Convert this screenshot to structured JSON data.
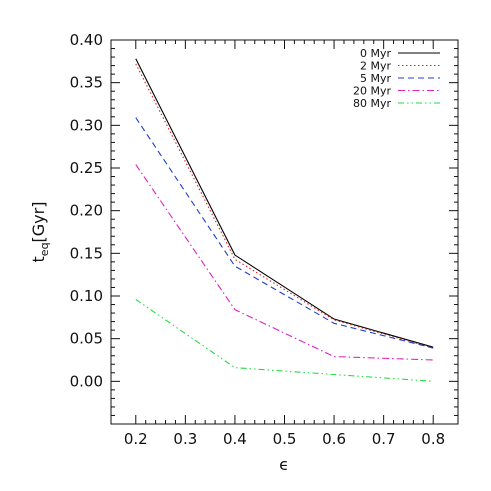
{
  "chart_data": {
    "type": "line",
    "xlabel": "ϵ",
    "ylabel": {
      "base": "t",
      "sub": "eq",
      "rest": "[Gyr]"
    },
    "xlim": [
      0.15,
      0.85
    ],
    "ylim": [
      -0.05,
      0.4
    ],
    "xticks": [
      0.2,
      0.3,
      0.4,
      0.5,
      0.6,
      0.7,
      0.8
    ],
    "xtick_labels": [
      "0.2",
      "0.3",
      "0.4",
      "0.5",
      "0.6",
      "0.7",
      "0.8"
    ],
    "yticks": [
      0.0,
      0.05,
      0.1,
      0.15,
      0.2,
      0.25,
      0.3,
      0.35,
      0.4
    ],
    "ytick_labels": [
      "0.00",
      "0.05",
      "0.10",
      "0.15",
      "0.20",
      "0.25",
      "0.30",
      "0.35",
      "0.40"
    ],
    "x": [
      0.2,
      0.4,
      0.6,
      0.8
    ],
    "legend_position": "top-right",
    "grid": false,
    "series": [
      {
        "name": "0 Myr",
        "color": "#000000",
        "dash": "solid",
        "values": [
          0.378,
          0.148,
          0.073,
          0.04
        ]
      },
      {
        "name": "2 Myr",
        "color": "#d62728",
        "dash": "dotted",
        "values": [
          0.372,
          0.143,
          0.072,
          0.039
        ]
      },
      {
        "name": "5 Myr",
        "color": "#1f3fd0",
        "dash": "dashed",
        "values": [
          0.309,
          0.135,
          0.068,
          0.039
        ]
      },
      {
        "name": "20 Myr",
        "color": "#e020c8",
        "dash": "dash-dot",
        "values": [
          0.254,
          0.084,
          0.029,
          0.025
        ]
      },
      {
        "name": "80 Myr",
        "color": "#22dd44",
        "dash": "dash-dot-dot",
        "values": [
          0.096,
          0.016,
          0.008,
          0.0
        ]
      }
    ]
  }
}
